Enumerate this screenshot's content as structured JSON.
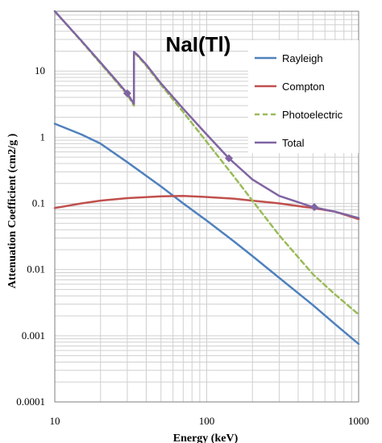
{
  "chart_data": {
    "type": "line",
    "title": "NaI(Tl)",
    "xlabel": "Energy (keV)",
    "ylabel": "Attenuation Coefficient (cm2/g )",
    "x_scale": "log",
    "y_scale": "log",
    "xlim": [
      10,
      1000
    ],
    "ylim": [
      0.0001,
      80
    ],
    "x_ticks": [
      {
        "value": 10,
        "label": "10"
      },
      {
        "value": 100,
        "label": "100"
      },
      {
        "value": 1000,
        "label": "1000"
      }
    ],
    "y_ticks": [
      {
        "value": 0.0001,
        "label": "0.0001"
      },
      {
        "value": 0.001,
        "label": "0.001"
      },
      {
        "value": 0.01,
        "label": "0.01"
      },
      {
        "value": 0.1,
        "label": "0.1"
      },
      {
        "value": 1,
        "label": "1"
      },
      {
        "value": 10,
        "label": "10"
      }
    ],
    "grid": true,
    "legend_position": "top-right",
    "series": [
      {
        "name": "Rayleigh",
        "color": "#4f81bd",
        "dash": "solid",
        "x": [
          10,
          15,
          20,
          30,
          50,
          70,
          100,
          150,
          200,
          300,
          500,
          700,
          1000
        ],
        "y": [
          1.6,
          1.1,
          0.8,
          0.42,
          0.18,
          0.1,
          0.055,
          0.027,
          0.016,
          0.0075,
          0.0029,
          0.0015,
          0.00075
        ]
      },
      {
        "name": "Compton",
        "color": "#c0504d",
        "dash": "solid",
        "x": [
          10,
          15,
          20,
          30,
          50,
          70,
          100,
          150,
          200,
          300,
          500,
          700,
          1000
        ],
        "y": [
          0.085,
          0.1,
          0.11,
          0.12,
          0.128,
          0.13,
          0.125,
          0.118,
          0.11,
          0.1,
          0.085,
          0.075,
          0.058
        ]
      },
      {
        "name": "Photoelectric",
        "color": "#9bbb59",
        "dash": "dashed",
        "x": [
          10,
          15,
          20,
          25,
          30,
          33.17,
          33.17,
          35,
          40,
          50,
          70,
          100,
          150,
          200,
          300,
          500,
          700,
          1000
        ],
        "y": [
          80,
          28,
          13,
          7.2,
          4.4,
          3.0,
          19,
          17,
          12,
          6.2,
          2.4,
          0.85,
          0.26,
          0.11,
          0.033,
          0.0085,
          0.0042,
          0.0021
        ]
      },
      {
        "name": "Total",
        "color": "#8064a2",
        "dash": "solid",
        "x": [
          10,
          15,
          20,
          25,
          30,
          33.17,
          33.17,
          35,
          40,
          50,
          70,
          100,
          140,
          200,
          300,
          500,
          700,
          1000
        ],
        "y": [
          80,
          28.5,
          13.5,
          7.5,
          4.6,
          3.2,
          19.5,
          17.5,
          12.5,
          6.5,
          2.7,
          1.1,
          0.48,
          0.23,
          0.13,
          0.088,
          0.075,
          0.06
        ]
      }
    ],
    "markers": [
      {
        "series": "Total",
        "x": 30,
        "y": 4.6
      },
      {
        "series": "Total",
        "x": 140,
        "y": 0.48
      },
      {
        "series": "Total",
        "x": 511,
        "y": 0.088
      }
    ]
  }
}
